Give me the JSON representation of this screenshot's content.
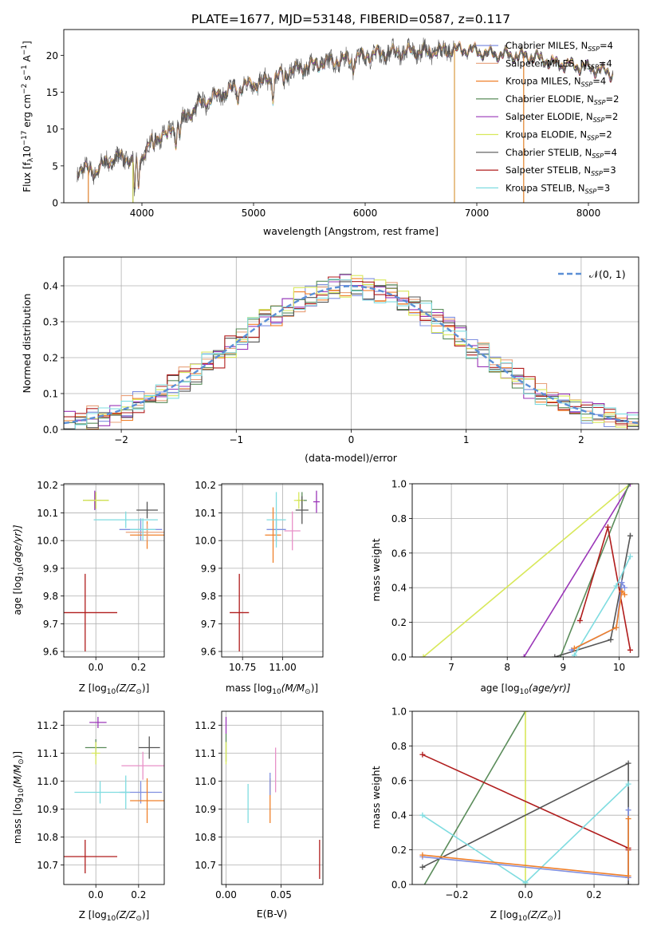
{
  "figure_title": "PLATE=1677, MJD=53148, FIBERID=0587, z=0.117",
  "colors": {
    "Chabrier MILES": "#7f8fe0",
    "Salpeter MILES": "#e8a07a",
    "Kroupa MILES": "#f0802a",
    "Chabrier ELODIE": "#5a8c5a",
    "Salpeter ELODIE": "#9a36b8",
    "Kroupa ELODIE": "#d8e85a",
    "Chabrier STELIB": "#555555",
    "Salpeter STELIB": "#b01c1c",
    "Kroupa STELIB": "#7fdce0",
    "gauss": "#5b8fd6",
    "pink": "#e890c8"
  },
  "chart_data": [
    {
      "type": "line",
      "title": "PLATE=1677, MJD=53148, FIBERID=0587, z=0.117",
      "xlabel": "wavelength [Angstrom, rest frame]",
      "ylabel_parts": [
        "Flux [f",
        "λ",
        "10",
        "−17",
        " erg cm",
        "−2",
        " s",
        "−1",
        " A",
        "−1",
        "]"
      ],
      "xlim": [
        3300,
        8450
      ],
      "ylim": [
        0,
        23.5
      ],
      "xticks": [
        4000,
        5000,
        6000,
        7000,
        8000
      ],
      "yticks": [
        0,
        5,
        10,
        15,
        20
      ],
      "grid": false,
      "legend_position": "upper right",
      "series": [
        {
          "name": "Chabrier MILES",
          "sub": "SSP",
          "n": "4"
        },
        {
          "name": "Salpeter MILES",
          "sub": "SSP",
          "n": "4"
        },
        {
          "name": "Kroupa MILES",
          "sub": "SSP",
          "n": "4"
        },
        {
          "name": "Chabrier ELODIE",
          "sub": "SSP",
          "n": "2"
        },
        {
          "name": "Salpeter ELODIE",
          "sub": "SSP",
          "n": "2"
        },
        {
          "name": "Kroupa ELODIE",
          "sub": "SSP",
          "n": "2"
        },
        {
          "name": "Chabrier STELIB",
          "sub": "SSP",
          "n": "4"
        },
        {
          "name": "Salpeter STELIB",
          "sub": "SSP",
          "n": "3"
        },
        {
          "name": "Kroupa STELIB",
          "sub": "SSP",
          "n": "3"
        }
      ],
      "continuum_points": [
        [
          3420,
          4.6
        ],
        [
          3600,
          4.3
        ],
        [
          3700,
          5.8
        ],
        [
          3850,
          6.2
        ],
        [
          3950,
          5.2
        ],
        [
          4100,
          8.6
        ],
        [
          4300,
          10.2
        ],
        [
          4500,
          13.2
        ],
        [
          4700,
          14.7
        ],
        [
          4900,
          15.8
        ],
        [
          5100,
          16.4
        ],
        [
          5300,
          17.7
        ],
        [
          5500,
          18.6
        ],
        [
          5700,
          19.2
        ],
        [
          5900,
          19.6
        ],
        [
          6100,
          20.2
        ],
        [
          6300,
          20.4
        ],
        [
          6500,
          20.6
        ],
        [
          6700,
          20.6
        ],
        [
          6900,
          20.8
        ],
        [
          7100,
          20.2
        ],
        [
          7300,
          20.0
        ],
        [
          7500,
          19.8
        ],
        [
          7700,
          18.9
        ],
        [
          7900,
          18.5
        ],
        [
          8100,
          18.0
        ],
        [
          8220,
          17.5
        ]
      ],
      "absorption_features": [
        [
          3934,
          -4.0
        ],
        [
          3969,
          -3.6
        ],
        [
          4102,
          -1.6
        ],
        [
          4227,
          -1.6
        ],
        [
          4305,
          -2.0
        ],
        [
          4340,
          -1.6
        ],
        [
          4861,
          -1.6
        ],
        [
          5175,
          -2.6
        ],
        [
          5270,
          -1.3
        ],
        [
          5892,
          -1.6
        ],
        [
          6563,
          -1.0
        ]
      ],
      "spike_wavelengths": [
        3520,
        3920,
        6800,
        7420
      ]
    },
    {
      "type": "bar",
      "xlabel": "(data-model)/error",
      "ylabel": "Normed distribution",
      "xlim": [
        -2.5,
        2.5
      ],
      "ylim": [
        0,
        0.48
      ],
      "xticks": [
        -2,
        -1,
        0,
        1,
        2
      ],
      "xticklabels": [
        "−2",
        "−1",
        "0",
        "1",
        "2"
      ],
      "yticks": [
        0,
        0.1,
        0.2,
        0.3,
        0.4
      ],
      "yticklabels": [
        "0.0",
        "0.1",
        "0.2",
        "0.3",
        "0.4"
      ],
      "grid": true,
      "legend_position": "upper right",
      "gauss_legend": "𝒩(0, 1)",
      "bin_width": 0.1
    },
    {
      "type": "scatter",
      "xlabel_parts": [
        "Z [log",
        "10",
        "(Z/Z",
        "⊙",
        ")]"
      ],
      "ylabel_parts": [
        "age  [log",
        "10",
        "(age/yr)]"
      ],
      "xlim": [
        -0.15,
        0.32
      ],
      "ylim": [
        9.58,
        10.205
      ],
      "xticks": [
        0.0,
        0.2
      ],
      "xticklabels": [
        "0.0",
        "0.2"
      ],
      "yticks": [
        9.6,
        9.7,
        9.8,
        9.9,
        10.0,
        10.1,
        10.2
      ],
      "yticklabels": [
        "9.6",
        "9.7",
        "9.8",
        "9.9",
        "10.0",
        "10.1",
        "10.2"
      ],
      "points": [
        {
          "series": "Chabrier MILES",
          "x": 0.21,
          "y": 10.04,
          "xerr": 0.1,
          "yerr": 0.04
        },
        {
          "series": "Kroupa MILES",
          "x": 0.24,
          "y": 10.02,
          "xerr": 0.08,
          "yerr": 0.05
        },
        {
          "series": "Chabrier ELODIE",
          "x": 0.0,
          "y": 10.145,
          "xerr": 0.06,
          "yerr": 0.03
        },
        {
          "series": "Salpeter ELODIE",
          "x": -0.005,
          "y": 10.145,
          "xerr": 0.03,
          "yerr": 0.035
        },
        {
          "series": "Kroupa ELODIE",
          "x": 0.0,
          "y": 10.145,
          "xerr": 0.06,
          "yerr": 0.03
        },
        {
          "series": "Chabrier STELIB",
          "x": 0.24,
          "y": 10.11,
          "xerr": 0.05,
          "yerr": 0.03
        },
        {
          "series": "Salpeter STELIB",
          "x": -0.05,
          "y": 9.74,
          "xerr": 0.15,
          "yerr": 0.14
        },
        {
          "series": "Kroupa STELIB",
          "x": 0.14,
          "y": 10.075,
          "xerr": 0.15,
          "yerr": 0.03
        },
        {
          "series": "Salpeter MILES",
          "x": 0.24,
          "y": 10.03,
          "xerr": 0.1,
          "yerr": 0.03
        },
        {
          "series": "Kroupa STELIB",
          "x": 0.22,
          "y": 10.04,
          "xerr": 0.06,
          "yerr": 0.04
        }
      ]
    },
    {
      "type": "scatter",
      "xlabel_parts": [
        "mass [log",
        "10",
        "(M/M",
        "⊙",
        ")]"
      ],
      "xlim": [
        10.62,
        11.25
      ],
      "ylim": [
        9.58,
        10.205
      ],
      "xticks": [
        10.75,
        11.0
      ],
      "xticklabels": [
        "10.75",
        "11.00"
      ],
      "yticks": [
        9.6,
        9.7,
        9.8,
        9.9,
        10.0,
        10.1,
        10.2
      ],
      "yticklabels": [
        "9.6",
        "9.7",
        "9.8",
        "9.9",
        "10.0",
        "10.1",
        "10.2"
      ],
      "points": [
        {
          "series": "Chabrier MILES",
          "x": 10.96,
          "y": 10.04,
          "xerr": 0.06,
          "yerr": 0.04
        },
        {
          "series": "Kroupa MILES",
          "x": 10.94,
          "y": 10.02,
          "xerr": 0.05,
          "yerr": 0.1
        },
        {
          "series": "Chabrier ELODIE",
          "x": 11.12,
          "y": 10.145,
          "xerr": 0.03,
          "yerr": 0.03
        },
        {
          "series": "Salpeter ELODIE",
          "x": 11.21,
          "y": 10.14,
          "xerr": 0.02,
          "yerr": 0.04
        },
        {
          "series": "Kroupa ELODIE",
          "x": 11.1,
          "y": 10.145,
          "xerr": 0.03,
          "yerr": 0.03
        },
        {
          "series": "Chabrier STELIB",
          "x": 11.12,
          "y": 10.11,
          "xerr": 0.04,
          "yerr": 0.05
        },
        {
          "series": "Salpeter STELIB",
          "x": 10.73,
          "y": 9.74,
          "xerr": 0.06,
          "yerr": 0.14
        },
        {
          "series": "Kroupa STELIB",
          "x": 10.96,
          "y": 10.075,
          "xerr": 0.06,
          "yerr": 0.1
        },
        {
          "series": "pink",
          "x": 11.06,
          "y": 10.035,
          "xerr": 0.05,
          "yerr": 0.07
        }
      ]
    },
    {
      "type": "line",
      "xlabel_parts": [
        "age  [log",
        "10",
        "(age/yr)]"
      ],
      "ylabel": "mass weight",
      "xlim": [
        6.3,
        10.35
      ],
      "ylim": [
        0,
        1
      ],
      "xticks": [
        7,
        8,
        9,
        10
      ],
      "yticks": [
        0,
        0.2,
        0.4,
        0.6,
        0.8,
        1.0
      ],
      "yticklabels": [
        "0.0",
        "0.2",
        "0.4",
        "0.6",
        "0.8",
        "1.0"
      ],
      "grid": true,
      "series": [
        {
          "name": "Kroupa ELODIE",
          "x": [
            6.5,
            10.2
          ],
          "y": [
            0.0,
            1.0
          ]
        },
        {
          "name": "Salpeter ELODIE",
          "x": [
            8.3,
            10.2
          ],
          "y": [
            0.0,
            1.0
          ]
        },
        {
          "name": "Chabrier ELODIE",
          "x": [
            8.95,
            10.18
          ],
          "y": [
            0.0,
            1.0
          ]
        },
        {
          "name": "Chabrier STELIB",
          "x": [
            8.85,
            9.85,
            10.2,
            10.2
          ],
          "y": [
            0.0,
            0.1,
            0.7,
            0.7
          ]
        },
        {
          "name": "Salpeter STELIB",
          "x": [
            9.3,
            9.8,
            10.2
          ],
          "y": [
            0.21,
            0.75,
            0.04
          ]
        },
        {
          "name": "Kroupa STELIB",
          "x": [
            9.2,
            9.95,
            10.2
          ],
          "y": [
            0.01,
            0.41,
            0.58
          ]
        },
        {
          "name": "Chabrier MILES",
          "x": [
            9.15,
            9.95,
            10.05,
            10.1
          ],
          "y": [
            0.04,
            0.17,
            0.43,
            0.4
          ]
        },
        {
          "name": "Kroupa MILES",
          "x": [
            9.2,
            9.95,
            10.05,
            10.1
          ],
          "y": [
            0.05,
            0.17,
            0.38,
            0.36
          ]
        }
      ]
    },
    {
      "type": "scatter",
      "xlabel_parts": [
        "Z [log",
        "10",
        "(Z/Z",
        "⊙",
        ")]"
      ],
      "ylabel_parts": [
        "mass [log",
        "10",
        "(M/M",
        "⊙",
        ")]"
      ],
      "xlim": [
        -0.15,
        0.32
      ],
      "ylim": [
        10.63,
        11.25
      ],
      "xticks": [
        0.0,
        0.2
      ],
      "xticklabels": [
        "0.0",
        "0.2"
      ],
      "yticks": [
        10.7,
        10.8,
        10.9,
        11.0,
        11.1,
        11.2
      ],
      "yticklabels": [
        "10.7",
        "10.8",
        "10.9",
        "11.0",
        "11.1",
        "11.2"
      ],
      "points": [
        {
          "series": "Chabrier MILES",
          "x": 0.21,
          "y": 10.96,
          "xerr": 0.1,
          "yerr": 0.04
        },
        {
          "series": "Kroupa MILES",
          "x": 0.24,
          "y": 10.93,
          "xerr": 0.08,
          "yerr": 0.08
        },
        {
          "series": "Chabrier ELODIE",
          "x": 0.0,
          "y": 11.12,
          "xerr": 0.05,
          "yerr": 0.03
        },
        {
          "series": "Salpeter ELODIE",
          "x": 0.01,
          "y": 11.21,
          "xerr": 0.04,
          "yerr": 0.02
        },
        {
          "series": "Kroupa ELODIE",
          "x": 0.0,
          "y": 11.1,
          "xerr": 0.02,
          "yerr": 0.04
        },
        {
          "series": "Chabrier STELIB",
          "x": 0.25,
          "y": 11.12,
          "xerr": 0.05,
          "yerr": 0.04
        },
        {
          "series": "Salpeter STELIB",
          "x": -0.05,
          "y": 10.73,
          "xerr": 0.15,
          "yerr": 0.06
        },
        {
          "series": "Kroupa STELIB",
          "x": 0.02,
          "y": 10.96,
          "xerr": 0.12,
          "yerr": 0.04
        },
        {
          "series": "Kroupa STELIB",
          "x": 0.14,
          "y": 10.96,
          "xerr": 0.02,
          "yerr": 0.06
        },
        {
          "series": "pink",
          "x": 0.22,
          "y": 11.055,
          "xerr": 0.1,
          "yerr": 0.05
        }
      ]
    },
    {
      "type": "scatter",
      "xlabel": "E(B-V)",
      "xlim": [
        -0.004,
        0.088
      ],
      "ylim": [
        10.63,
        11.25
      ],
      "xticks": [
        0.0,
        0.05
      ],
      "xticklabels": [
        "0.00",
        "0.05"
      ],
      "yticks": [
        10.7,
        10.8,
        10.9,
        11.0,
        11.1,
        11.2
      ],
      "yticklabels": [
        "10.7",
        "10.8",
        "10.9",
        "11.0",
        "11.1",
        "11.2"
      ],
      "points": [
        {
          "series": "Chabrier ELODIE",
          "x": 0.0,
          "y": 11.12,
          "xerr": 0.0,
          "yerr": 0.05
        },
        {
          "series": "Salpeter ELODIE",
          "x": 0.0,
          "y": 11.2,
          "xerr": 0.0,
          "yerr": 0.03
        },
        {
          "series": "Kroupa ELODIE",
          "x": 0.0,
          "y": 11.1,
          "xerr": 0.0,
          "yerr": 0.04
        },
        {
          "series": "Kroupa STELIB",
          "x": 0.02,
          "y": 10.92,
          "xerr": 0.0,
          "yerr": 0.07
        },
        {
          "series": "Kroupa MILES",
          "x": 0.04,
          "y": 10.93,
          "xerr": 0.0,
          "yerr": 0.08
        },
        {
          "series": "Chabrier MILES",
          "x": 0.04,
          "y": 10.99,
          "xerr": 0.0,
          "yerr": 0.04
        },
        {
          "series": "pink",
          "x": 0.045,
          "y": 11.04,
          "xerr": 0.0,
          "yerr": 0.08
        },
        {
          "series": "Salpeter STELIB",
          "x": 0.085,
          "y": 10.72,
          "xerr": 0.0,
          "yerr": 0.07
        }
      ]
    },
    {
      "type": "line",
      "xlabel_parts": [
        "Z [log",
        "10",
        "(Z/Z",
        "⊙",
        ")]"
      ],
      "ylabel": "mass weight",
      "xlim": [
        -0.33,
        0.33
      ],
      "ylim": [
        0,
        1
      ],
      "xticks": [
        -0.2,
        0.0,
        0.2
      ],
      "xticklabels": [
        "−0.2",
        "0.0",
        "0.2"
      ],
      "yticks": [
        0,
        0.2,
        0.4,
        0.6,
        0.8,
        1.0
      ],
      "yticklabels": [
        "0.0",
        "0.2",
        "0.4",
        "0.6",
        "0.8",
        "1.0"
      ],
      "grid": true,
      "series": [
        {
          "name": "Chabrier ELODIE",
          "x": [
            -0.3,
            0.0
          ],
          "y": [
            -0.02,
            1.0
          ]
        },
        {
          "name": "Kroupa ELODIE",
          "x": [
            0.0,
            0.0
          ],
          "y": [
            0.0,
            1.0
          ]
        },
        {
          "name": "Salpeter STELIB",
          "x": [
            -0.3,
            0.3,
            0.3,
            0.3
          ],
          "y": [
            0.75,
            0.21,
            0.2,
            0.04
          ]
        },
        {
          "name": "Chabrier STELIB",
          "x": [
            -0.3,
            0.3,
            0.3
          ],
          "y": [
            0.1,
            0.7,
            0.0
          ]
        },
        {
          "name": "Kroupa STELIB",
          "x": [
            -0.3,
            0.0,
            0.3
          ],
          "y": [
            0.4,
            0.01,
            0.58
          ]
        },
        {
          "name": "Chabrier MILES",
          "x": [
            -0.3,
            0.3,
            0.3
          ],
          "y": [
            0.16,
            0.04,
            0.43
          ]
        },
        {
          "name": "Kroupa MILES",
          "x": [
            -0.3,
            0.3,
            0.3
          ],
          "y": [
            0.17,
            0.05,
            0.38
          ]
        }
      ]
    }
  ]
}
